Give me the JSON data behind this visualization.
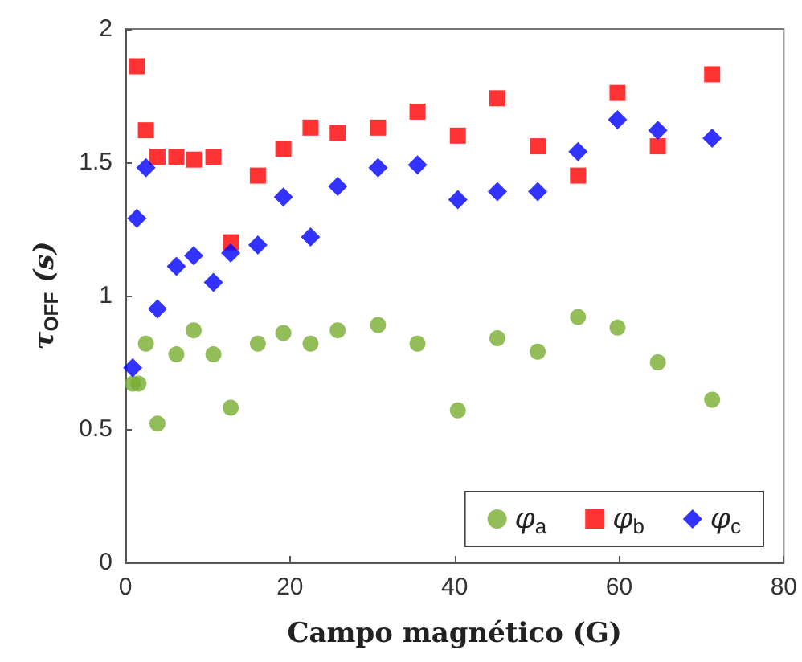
{
  "chart_data": {
    "type": "scatter",
    "xlabel": "Campo magnético (G)",
    "ylabel": "τ$_{OFF}$ (s)",
    "xlim": [
      0,
      80
    ],
    "xticks": [
      0,
      20,
      40,
      60,
      80
    ],
    "ylim": [
      0,
      2
    ],
    "yticks": [
      0,
      0.5,
      1,
      1.5,
      2
    ],
    "grid": false,
    "legend": "bottom right",
    "series": [
      {
        "name": "φ$_{a}$",
        "color": "#77ac30",
        "marker": "circle",
        "x": [
          0.9,
          1.6,
          2.5,
          3.9,
          6.2,
          8.3,
          10.7,
          12.8,
          16.1,
          19.2,
          22.5,
          25.8,
          30.7,
          35.5,
          40.4,
          45.2,
          50.1,
          55,
          59.8,
          64.7,
          71.3
        ],
        "values": [
          0.67,
          0.67,
          0.82,
          0.52,
          0.78,
          0.87,
          0.78,
          0.58,
          0.82,
          0.86,
          0.82,
          0.87,
          0.89,
          0.82,
          0.57,
          0.84,
          0.79,
          0.92,
          0.88,
          0.75,
          0.61
        ]
      },
      {
        "name": "φ$_{b}$",
        "color": "#ff0000",
        "marker": "square",
        "x": [
          1.4,
          2.5,
          3.9,
          6.2,
          8.3,
          10.7,
          12.8,
          16.1,
          19.2,
          22.5,
          25.8,
          30.7,
          35.5,
          40.4,
          45.2,
          50.1,
          55,
          59.8,
          64.7,
          71.3
        ],
        "values": [
          1.86,
          1.62,
          1.52,
          1.52,
          1.51,
          1.52,
          1.2,
          1.45,
          1.55,
          1.63,
          1.61,
          1.63,
          1.69,
          1.6,
          1.74,
          1.56,
          1.45,
          1.76,
          1.56,
          1.83
        ]
      },
      {
        "name": "φ$_{c}$",
        "color": "#0000ff",
        "marker": "diamond",
        "x": [
          0.9,
          1.4,
          2.5,
          3.9,
          6.2,
          8.3,
          10.7,
          12.8,
          16.1,
          19.2,
          22.5,
          25.8,
          30.7,
          35.5,
          40.4,
          45.2,
          50.1,
          55,
          59.8,
          64.7,
          71.3
        ],
        "values": [
          0.73,
          1.29,
          1.48,
          0.95,
          1.11,
          1.15,
          1.05,
          1.16,
          1.19,
          1.37,
          1.22,
          1.41,
          1.48,
          1.49,
          1.36,
          1.39,
          1.39,
          1.54,
          1.66,
          1.62,
          1.59
        ]
      }
    ]
  }
}
